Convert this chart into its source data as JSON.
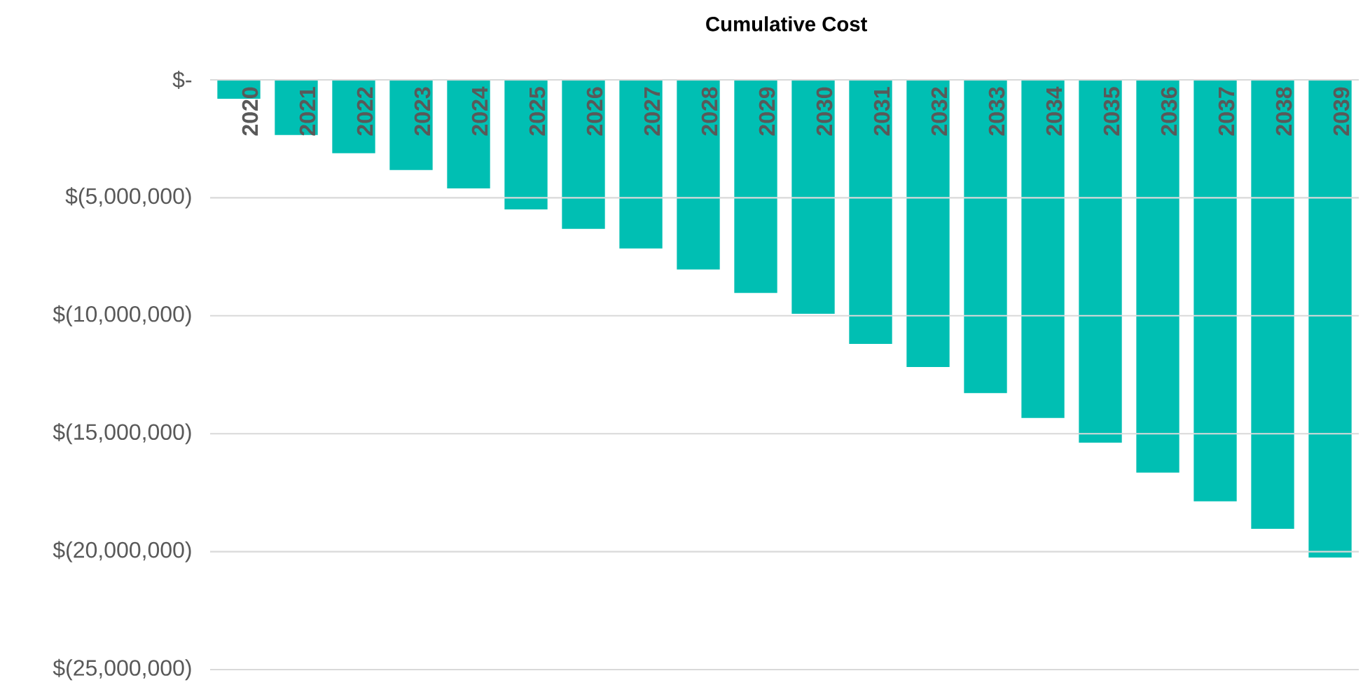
{
  "chart_data": {
    "type": "bar",
    "title": "Cumulative Cost",
    "categories": [
      "2020",
      "2021",
      "2022",
      "2023",
      "2024",
      "2025",
      "2026",
      "2027",
      "2028",
      "2029",
      "2030",
      "2031",
      "2032",
      "2033",
      "2034",
      "2035",
      "2036",
      "2037",
      "2038",
      "2039"
    ],
    "values": [
      -800000,
      -2340000,
      -3110000,
      -3820000,
      -4600000,
      -5490000,
      -6320000,
      -7150000,
      -8040000,
      -9030000,
      -9920000,
      -11190000,
      -12170000,
      -13280000,
      -14330000,
      -15380000,
      -16650000,
      -17870000,
      -19030000,
      -20250000
    ],
    "color": "#00bfb3",
    "ylim": [
      -25000000,
      0
    ],
    "yticks": [
      {
        "value": 0,
        "label": "$-"
      },
      {
        "value": -5000000,
        "label": "$(5,000,000)"
      },
      {
        "value": -10000000,
        "label": "$(10,000,000)"
      },
      {
        "value": -15000000,
        "label": "$(15,000,000)"
      },
      {
        "value": -20000000,
        "label": "$(20,000,000)"
      },
      {
        "value": -25000000,
        "label": "$(25,000,000)"
      }
    ],
    "grid": "y"
  }
}
